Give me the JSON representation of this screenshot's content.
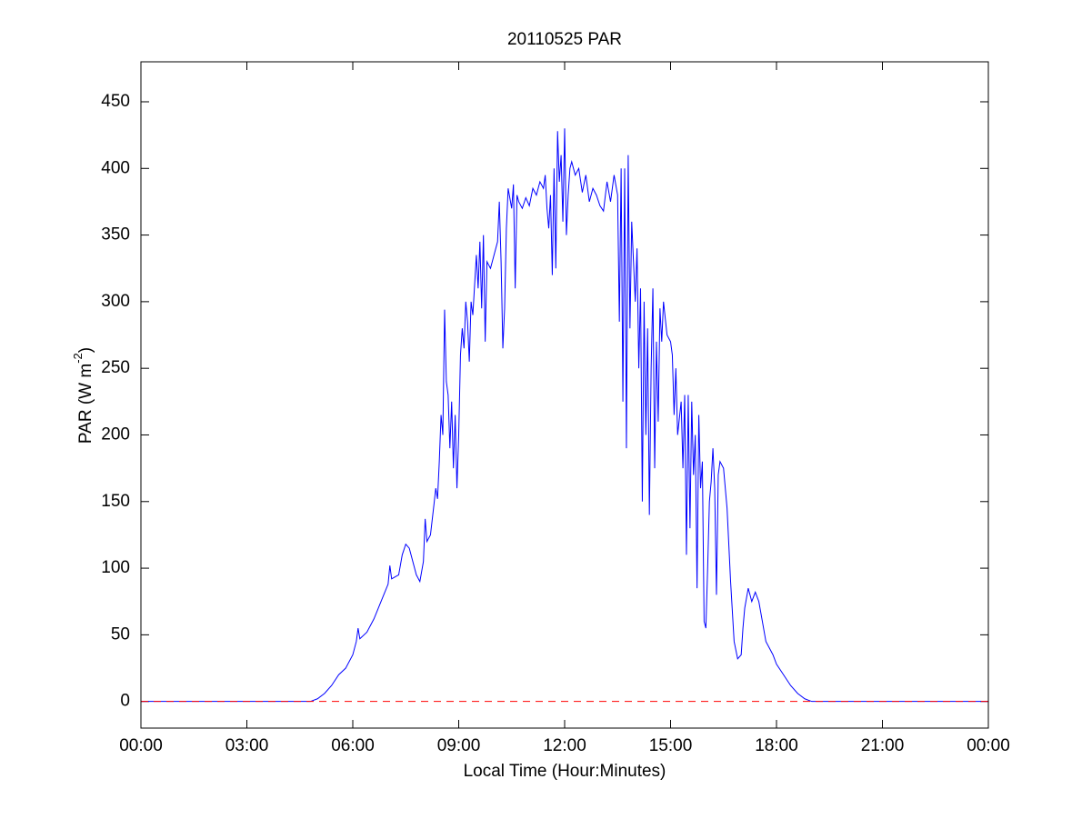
{
  "chart_data": {
    "type": "line",
    "title": "20110525 PAR",
    "xlabel": "Local Time (Hour:Minutes)",
    "ylabel": {
      "text": "PAR (W m",
      "superscript": "-2",
      "suffix": ")"
    },
    "xlim": [
      0,
      24
    ],
    "xticks": [
      {
        "value": 0,
        "label": "00:00"
      },
      {
        "value": 3,
        "label": "03:00"
      },
      {
        "value": 6,
        "label": "06:00"
      },
      {
        "value": 9,
        "label": "09:00"
      },
      {
        "value": 12,
        "label": "12:00"
      },
      {
        "value": 15,
        "label": "15:00"
      },
      {
        "value": 18,
        "label": "18:00"
      },
      {
        "value": 21,
        "label": "21:00"
      },
      {
        "value": 24,
        "label": "00:00"
      }
    ],
    "ylim": [
      -20,
      480
    ],
    "yticks": [
      0,
      50,
      100,
      150,
      200,
      250,
      300,
      350,
      400,
      450
    ],
    "grid": false,
    "hline": {
      "value": 0,
      "color": "#ff0000",
      "style": "dashed"
    },
    "series": [
      {
        "color": "#0000ff",
        "x": [
          0,
          4.8,
          5.0,
          5.2,
          5.4,
          5.6,
          5.8,
          6.0,
          6.1,
          6.15,
          6.2,
          6.4,
          6.6,
          6.8,
          7.0,
          7.05,
          7.1,
          7.3,
          7.4,
          7.5,
          7.6,
          7.8,
          7.9,
          8.0,
          8.05,
          8.1,
          8.2,
          8.3,
          8.35,
          8.4,
          8.45,
          8.5,
          8.55,
          8.6,
          8.65,
          8.7,
          8.75,
          8.8,
          8.85,
          8.9,
          8.95,
          9.0,
          9.05,
          9.1,
          9.15,
          9.2,
          9.25,
          9.3,
          9.35,
          9.4,
          9.5,
          9.55,
          9.6,
          9.65,
          9.7,
          9.75,
          9.8,
          9.9,
          10.0,
          10.1,
          10.15,
          10.2,
          10.25,
          10.3,
          10.35,
          10.4,
          10.5,
          10.55,
          10.6,
          10.65,
          10.7,
          10.8,
          10.9,
          11.0,
          11.1,
          11.2,
          11.3,
          11.4,
          11.45,
          11.5,
          11.55,
          11.6,
          11.65,
          11.7,
          11.75,
          11.8,
          11.85,
          11.9,
          11.95,
          12.0,
          12.05,
          12.1,
          12.15,
          12.2,
          12.3,
          12.4,
          12.5,
          12.6,
          12.7,
          12.8,
          12.9,
          13.0,
          13.1,
          13.2,
          13.3,
          13.4,
          13.5,
          13.55,
          13.6,
          13.65,
          13.7,
          13.75,
          13.8,
          13.85,
          13.9,
          14.0,
          14.05,
          14.1,
          14.15,
          14.2,
          14.25,
          14.3,
          14.35,
          14.4,
          14.45,
          14.5,
          14.55,
          14.6,
          14.65,
          14.7,
          14.75,
          14.8,
          14.9,
          15.0,
          15.05,
          15.1,
          15.15,
          15.2,
          15.3,
          15.35,
          15.4,
          15.45,
          15.5,
          15.55,
          15.6,
          15.65,
          15.7,
          15.75,
          15.8,
          15.85,
          15.9,
          15.95,
          16.0,
          16.05,
          16.1,
          16.15,
          16.2,
          16.25,
          16.3,
          16.35,
          16.4,
          16.5,
          16.6,
          16.7,
          16.8,
          16.9,
          17.0,
          17.05,
          17.1,
          17.2,
          17.3,
          17.4,
          17.5,
          17.6,
          17.7,
          17.8,
          17.9,
          18.0,
          18.2,
          18.4,
          18.6,
          18.8,
          19.0,
          24
        ],
        "values": [
          0,
          0,
          2,
          6,
          12,
          20,
          25,
          35,
          45,
          55,
          47,
          52,
          62,
          75,
          88,
          102,
          92,
          95,
          110,
          118,
          115,
          95,
          90,
          105,
          137,
          120,
          125,
          148,
          160,
          152,
          180,
          215,
          200,
          294,
          240,
          230,
          190,
          225,
          175,
          215,
          160,
          200,
          260,
          280,
          265,
          300,
          285,
          255,
          300,
          290,
          335,
          310,
          345,
          295,
          350,
          270,
          330,
          325,
          335,
          345,
          375,
          330,
          265,
          295,
          355,
          385,
          370,
          388,
          310,
          380,
          375,
          370,
          378,
          372,
          385,
          380,
          390,
          385,
          395,
          370,
          355,
          380,
          320,
          400,
          325,
          428,
          390,
          410,
          360,
          430,
          350,
          380,
          400,
          405,
          395,
          400,
          382,
          395,
          375,
          385,
          380,
          372,
          368,
          390,
          375,
          395,
          380,
          285,
          400,
          225,
          400,
          190,
          410,
          280,
          360,
          300,
          340,
          250,
          310,
          150,
          300,
          200,
          280,
          140,
          250,
          310,
          175,
          270,
          210,
          295,
          270,
          300,
          275,
          270,
          260,
          215,
          250,
          200,
          225,
          175,
          230,
          110,
          230,
          130,
          225,
          170,
          200,
          85,
          215,
          160,
          180,
          60,
          55,
          100,
          150,
          165,
          190,
          160,
          80,
          170,
          180,
          175,
          145,
          90,
          45,
          32,
          35,
          55,
          70,
          85,
          75,
          82,
          75,
          60,
          45,
          40,
          35,
          28,
          20,
          12,
          6,
          2,
          0,
          0
        ]
      }
    ]
  }
}
